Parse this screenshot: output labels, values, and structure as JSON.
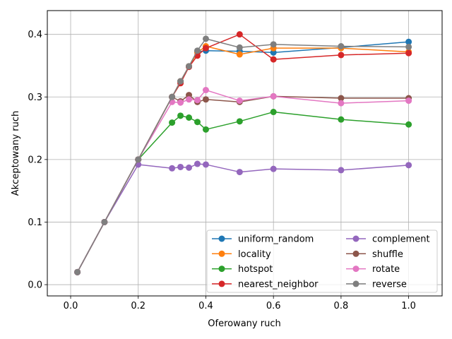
{
  "chart_data": {
    "type": "line",
    "title": "",
    "xlabel": "Oferowany ruch",
    "ylabel": "Akceptowany ruch",
    "xlim": [
      -0.069,
      1.099
    ],
    "ylim": [
      -0.018,
      0.438
    ],
    "xticks": [
      0.0,
      0.2,
      0.4,
      0.6,
      0.8,
      1.0
    ],
    "xtick_labels": [
      "0.0",
      "0.2",
      "0.4",
      "0.6",
      "0.8",
      "1.0"
    ],
    "yticks": [
      0.0,
      0.1,
      0.2,
      0.3,
      0.4
    ],
    "ytick_labels": [
      "0.0",
      "0.1",
      "0.2",
      "0.3",
      "0.4"
    ],
    "grid": true,
    "legend_position": "lower-right",
    "legend_columns": 2,
    "x": [
      0.02,
      0.1,
      0.2,
      0.3,
      0.325,
      0.35,
      0.375,
      0.4,
      0.5,
      0.6,
      0.8,
      1.0
    ],
    "series": [
      {
        "name": "uniform_random",
        "color": "#1f77b4",
        "values": [
          0.02,
          0.1,
          0.2,
          0.3,
          0.325,
          0.349,
          0.372,
          0.374,
          0.373,
          0.371,
          0.379,
          0.388
        ]
      },
      {
        "name": "locality",
        "color": "#ff7f0e",
        "values": [
          0.02,
          0.1,
          0.2,
          0.3,
          0.325,
          0.349,
          0.371,
          0.381,
          0.368,
          0.378,
          0.378,
          0.372
        ]
      },
      {
        "name": "hotspot",
        "color": "#2ca02c",
        "values": [
          0.02,
          0.1,
          0.2,
          0.259,
          0.27,
          0.267,
          0.26,
          0.248,
          0.261,
          0.276,
          0.264,
          0.256
        ]
      },
      {
        "name": "nearest_neighbor",
        "color": "#d62728",
        "values": [
          0.02,
          0.1,
          0.2,
          0.3,
          0.322,
          0.348,
          0.366,
          0.378,
          0.4,
          0.36,
          0.367,
          0.37
        ]
      },
      {
        "name": "complement",
        "color": "#9467bd",
        "values": [
          0.02,
          0.1,
          0.192,
          0.186,
          0.188,
          0.187,
          0.193,
          0.192,
          0.18,
          0.185,
          0.183,
          0.191
        ]
      },
      {
        "name": "shuffle",
        "color": "#8c564b",
        "values": [
          0.02,
          0.1,
          0.2,
          0.3,
          0.293,
          0.303,
          0.292,
          0.296,
          0.292,
          0.301,
          0.298,
          0.298
        ]
      },
      {
        "name": "rotate",
        "color": "#e377c2",
        "values": [
          0.02,
          0.1,
          0.2,
          0.292,
          0.291,
          0.296,
          0.295,
          0.311,
          0.294,
          0.301,
          0.29,
          0.294
        ]
      },
      {
        "name": "reverse",
        "color": "#7f7f7f",
        "values": [
          0.02,
          0.1,
          0.2,
          0.3,
          0.325,
          0.349,
          0.374,
          0.393,
          0.379,
          0.384,
          0.381,
          0.38
        ]
      }
    ]
  }
}
